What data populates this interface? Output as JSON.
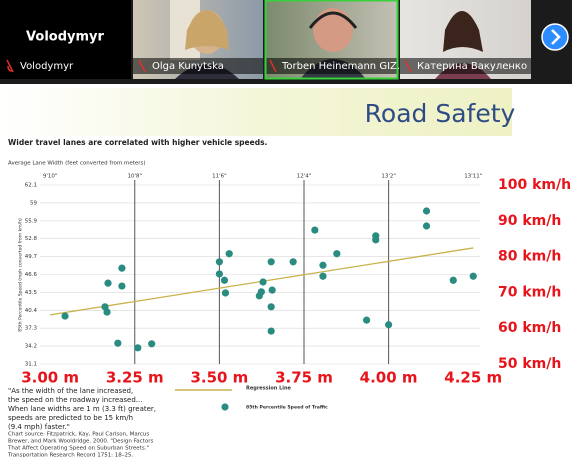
{
  "meeting": {
    "featured_name": "Volodymyr",
    "participants": [
      {
        "name": "Volodymyr"
      },
      {
        "name": "Olga Kunytska"
      },
      {
        "name": "Torben Heinemann GIZ, ..."
      },
      {
        "name": "Катерина Вакуленко"
      }
    ]
  },
  "slide": {
    "title": "Road Safety",
    "subtitle": "Wider travel lanes are correlated with higher vehicle speeds.",
    "quote": [
      "\"As the width of the lane increased,",
      "the speed on the roadway increased...",
      "When lane widths are 1 m (3.3 ft) greater,",
      "speeds are predicted to be 15 km/h",
      "(9.4 mph) faster.\""
    ],
    "source": [
      "Chart source: Fitzpatrick, Kay, Paul Carlson, Marcus",
      "Brewer, and Mark Wooldridge. 2000. \"Design Factors",
      "That Affect Operating Speed on Suburban Streets.\"",
      "Transportation Research Record 1751: 18–25."
    ]
  },
  "chart_data": {
    "type": "scatter",
    "x_label": "Average Lane Width (feet converted from meters)",
    "y_label": "85th Percentile Speed (mph converted from km/h)",
    "xlim": [
      2.97,
      4.27
    ],
    "ylim": [
      31.1,
      62.1
    ],
    "y2lim": [
      50,
      100
    ],
    "xticks": [
      {
        "value": 3.0,
        "label": "9'10\""
      },
      {
        "value": 3.25,
        "label": "10'8\""
      },
      {
        "value": 3.5,
        "label": "11'6\""
      },
      {
        "value": 3.75,
        "label": "12'4\""
      },
      {
        "value": 4.0,
        "label": "13'2\""
      },
      {
        "value": 4.25,
        "label": "13'11\""
      }
    ],
    "xticks_metric": [
      {
        "value": 3.0,
        "label": "3.00 m"
      },
      {
        "value": 3.25,
        "label": "3.25 m"
      },
      {
        "value": 3.5,
        "label": "3.50 m"
      },
      {
        "value": 3.75,
        "label": "3.75 m"
      },
      {
        "value": 4.0,
        "label": "4.00 m"
      },
      {
        "value": 4.25,
        "label": "4.25 m"
      }
    ],
    "yticks": [
      62.1,
      59.0,
      55.9,
      52.8,
      49.7,
      46.6,
      43.5,
      40.4,
      37.3,
      34.2,
      31.1
    ],
    "y2ticks": [
      {
        "value": 100,
        "label": "100 km/h"
      },
      {
        "value": 90,
        "label": "90 km/h"
      },
      {
        "value": 80,
        "label": "80 km/h"
      },
      {
        "value": 70,
        "label": "70 km/h"
      },
      {
        "value": 60,
        "label": "60 km/h"
      },
      {
        "value": 50,
        "label": "50 km/h"
      }
    ],
    "series": [
      {
        "name": "85th Percentile Speed of Traffic",
        "color": "#2a8c80",
        "x": [
          3.044,
          3.162,
          3.168,
          3.171,
          3.212,
          3.212,
          3.2,
          3.259,
          3.3,
          3.5,
          3.5,
          3.515,
          3.518,
          3.529,
          3.618,
          3.624,
          3.629,
          3.653,
          3.656,
          3.653,
          3.653,
          3.718,
          3.782,
          3.806,
          3.806,
          3.847,
          3.935,
          3.962,
          3.962,
          4.0,
          4.112,
          4.112,
          4.191,
          4.25
        ],
        "values": [
          39.4,
          41.0,
          40.1,
          45.1,
          47.7,
          44.6,
          34.7,
          33.9,
          34.6,
          48.8,
          46.7,
          45.6,
          43.4,
          50.2,
          42.9,
          43.6,
          45.3,
          48.8,
          43.9,
          41.0,
          36.8,
          48.8,
          54.3,
          48.2,
          46.3,
          50.2,
          38.7,
          53.3,
          52.6,
          37.9,
          57.6,
          55.0,
          45.6,
          46.3
        ]
      },
      {
        "name": "Regression Line",
        "color": "#c9b24a",
        "x": [
          3.0,
          4.25
        ],
        "values": [
          39.6,
          51.2
        ]
      }
    ]
  }
}
